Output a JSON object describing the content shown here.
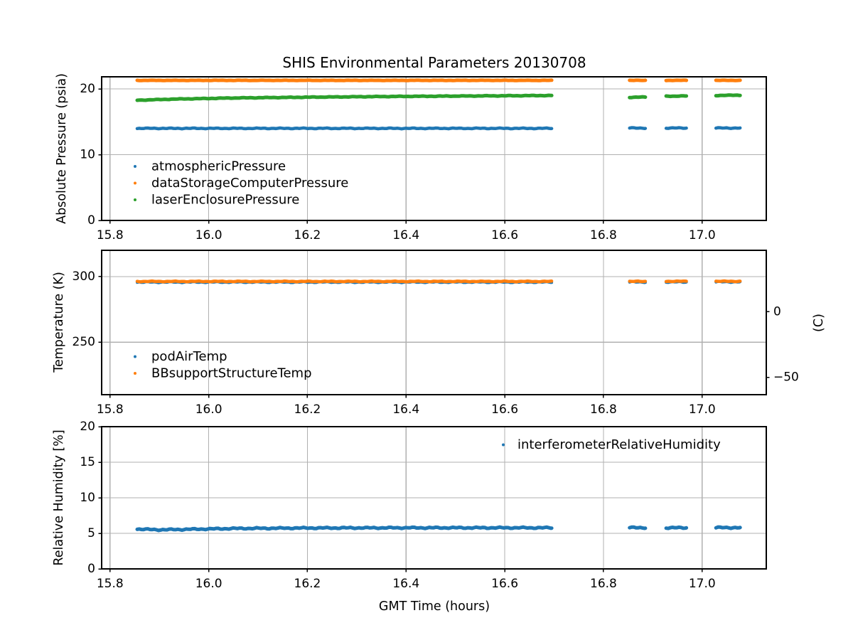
{
  "figure": {
    "title": "SHIS Environmental Parameters 20130708",
    "xlabel": "GMT Time (hours)",
    "background": "#ffffff",
    "grid_color": "#b0b0b0",
    "spine_color": "#000000",
    "text_color": "#000000"
  },
  "chart_data": [
    {
      "type": "scatter",
      "ylabel": "Absolute Pressure (psia)",
      "xlim": [
        15.783,
        17.13
      ],
      "ylim": [
        0,
        21.84
      ],
      "grid": true,
      "legend_position": "lower left",
      "xticks": [
        {
          "v": 15.8,
          "label": "15.8"
        },
        {
          "v": 16.0,
          "label": "16.0"
        },
        {
          "v": 16.2,
          "label": "16.2"
        },
        {
          "v": 16.4,
          "label": "16.4"
        },
        {
          "v": 16.6,
          "label": "16.6"
        },
        {
          "v": 16.8,
          "label": "16.8"
        },
        {
          "v": 17.0,
          "label": "17.0"
        }
      ],
      "yticks": [
        {
          "v": 0,
          "label": "0"
        },
        {
          "v": 10,
          "label": "10"
        },
        {
          "v": 20,
          "label": "20"
        }
      ],
      "series": [
        {
          "name": "atmosphericPressure",
          "color": "#1f77b4",
          "marker_size": 4.5,
          "noise": 0.07,
          "segments": [
            [
              [
                15.855,
                14.0
              ],
              [
                16.695,
                14.0
              ]
            ],
            [
              [
                16.853,
                14.05
              ],
              [
                16.885,
                14.05
              ]
            ],
            [
              [
                16.927,
                14.05
              ],
              [
                16.968,
                14.05
              ]
            ],
            [
              [
                17.028,
                14.05
              ],
              [
                17.077,
                14.05
              ]
            ]
          ]
        },
        {
          "name": "dataStorageComputerPressure",
          "color": "#ff7f0e",
          "marker_size": 5,
          "noise": 0.03,
          "segments": [
            [
              [
                15.855,
                21.3
              ],
              [
                16.695,
                21.3
              ]
            ],
            [
              [
                16.853,
                21.3
              ],
              [
                16.885,
                21.3
              ]
            ],
            [
              [
                16.927,
                21.3
              ],
              [
                16.968,
                21.3
              ]
            ],
            [
              [
                17.028,
                21.3
              ],
              [
                17.077,
                21.3
              ]
            ]
          ]
        },
        {
          "name": "laserEnclosurePressure",
          "color": "#2ca02c",
          "marker_size": 5,
          "noise": 0.05,
          "segments": [
            [
              [
                15.855,
                18.28
              ],
              [
                15.93,
                18.45
              ],
              [
                16.05,
                18.62
              ],
              [
                16.2,
                18.74
              ],
              [
                16.35,
                18.84
              ],
              [
                16.5,
                18.91
              ],
              [
                16.695,
                19.0
              ]
            ],
            [
              [
                16.853,
                18.72
              ],
              [
                16.885,
                18.76
              ]
            ],
            [
              [
                16.927,
                18.88
              ],
              [
                16.968,
                18.93
              ]
            ],
            [
              [
                17.028,
                19.0
              ],
              [
                17.077,
                19.05
              ]
            ]
          ]
        }
      ]
    },
    {
      "type": "scatter",
      "ylabel": "Temperature (K)",
      "y2label": "(C)",
      "xlim": [
        15.783,
        17.13
      ],
      "ylim": [
        210,
        320
      ],
      "grid": true,
      "legend_position": "lower left",
      "xticks": [
        {
          "v": 15.8,
          "label": "15.8"
        },
        {
          "v": 16.0,
          "label": "16.0"
        },
        {
          "v": 16.2,
          "label": "16.2"
        },
        {
          "v": 16.4,
          "label": "16.4"
        },
        {
          "v": 16.6,
          "label": "16.6"
        },
        {
          "v": 16.8,
          "label": "16.8"
        },
        {
          "v": 17.0,
          "label": "17.0"
        }
      ],
      "yticks": [
        {
          "v": 250,
          "label": "250"
        },
        {
          "v": 300,
          "label": "300"
        }
      ],
      "y2ticks": [
        {
          "v": 273.15,
          "label": "0"
        },
        {
          "v": 223.15,
          "label": "−50"
        }
      ],
      "series": [
        {
          "name": "podAirTemp",
          "color": "#1f77b4",
          "marker_size": 4,
          "noise": 0.45,
          "segments": [
            [
              [
                15.855,
                295.7
              ],
              [
                16.695,
                295.7
              ]
            ],
            [
              [
                16.853,
                295.8
              ],
              [
                16.885,
                295.8
              ]
            ],
            [
              [
                16.927,
                295.8
              ],
              [
                16.968,
                295.8
              ]
            ],
            [
              [
                17.028,
                295.9
              ],
              [
                17.077,
                295.9
              ]
            ]
          ]
        },
        {
          "name": "BBsupportStructureTemp",
          "color": "#ff7f0e",
          "marker_size": 4.5,
          "noise": 0.3,
          "segments": [
            [
              [
                15.855,
                296.3
              ],
              [
                16.695,
                296.3
              ]
            ],
            [
              [
                16.853,
                296.3
              ],
              [
                16.885,
                296.3
              ]
            ],
            [
              [
                16.927,
                296.4
              ],
              [
                16.968,
                296.4
              ]
            ],
            [
              [
                17.028,
                296.4
              ],
              [
                17.077,
                296.4
              ]
            ]
          ]
        }
      ]
    },
    {
      "type": "scatter",
      "ylabel": "Relative Humidity [%]",
      "xlim": [
        15.783,
        17.13
      ],
      "ylim": [
        0,
        20
      ],
      "grid": true,
      "legend_position": "upper right",
      "xticks": [
        {
          "v": 15.8,
          "label": "15.8"
        },
        {
          "v": 16.0,
          "label": "16.0"
        },
        {
          "v": 16.2,
          "label": "16.2"
        },
        {
          "v": 16.4,
          "label": "16.4"
        },
        {
          "v": 16.6,
          "label": "16.6"
        },
        {
          "v": 16.8,
          "label": "16.8"
        },
        {
          "v": 17.0,
          "label": "17.0"
        }
      ],
      "yticks": [
        {
          "v": 0,
          "label": "0"
        },
        {
          "v": 5,
          "label": "5"
        },
        {
          "v": 10,
          "label": "10"
        },
        {
          "v": 15,
          "label": "15"
        },
        {
          "v": 20,
          "label": "20"
        }
      ],
      "series": [
        {
          "name": "interferometerRelativeHumidity",
          "color": "#1f77b4",
          "marker_size": 5,
          "noise": 0.1,
          "segments": [
            [
              [
                15.855,
                5.6
              ],
              [
                15.9,
                5.5
              ],
              [
                15.97,
                5.58
              ],
              [
                16.05,
                5.68
              ],
              [
                16.2,
                5.75
              ],
              [
                16.4,
                5.78
              ],
              [
                16.695,
                5.78
              ]
            ],
            [
              [
                16.853,
                5.8
              ],
              [
                16.885,
                5.8
              ]
            ],
            [
              [
                16.927,
                5.78
              ],
              [
                16.968,
                5.78
              ]
            ],
            [
              [
                17.028,
                5.8
              ],
              [
                17.077,
                5.8
              ]
            ]
          ]
        }
      ]
    }
  ]
}
